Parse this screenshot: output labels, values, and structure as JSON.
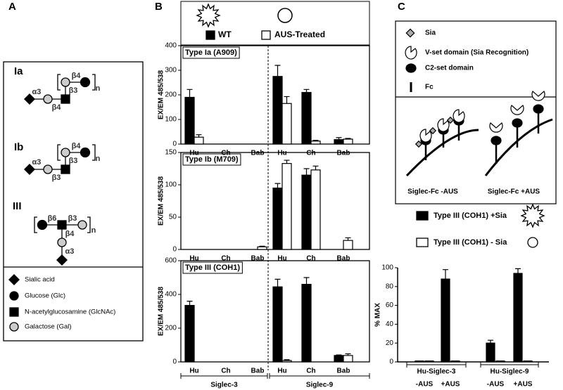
{
  "panel_labels": [
    "A",
    "B",
    "C"
  ],
  "panel_a": {
    "structures": [
      {
        "label": "Ia",
        "texts": [
          "β4",
          "n",
          "α3",
          "β3",
          "β4"
        ]
      },
      {
        "label": "Ib",
        "texts": [
          "β4",
          "n",
          "α3",
          "β3",
          "β3"
        ]
      },
      {
        "label": "III",
        "texts": [
          "β6",
          "β3",
          "n",
          "β4",
          "α3"
        ]
      }
    ],
    "legend": [
      "Sialic acid",
      "Glucose (Glc)",
      "N-acetylglucosamine (GlcNAc)",
      "Galactose (Gal)"
    ]
  },
  "panel_c": {
    "key": [
      "Sia",
      "V-set domain (Sia Recognition)",
      "C2-set domain",
      "Fc"
    ],
    "diagram_labels": [
      "Siglec-Fc -AUS",
      "Siglec-Fc +AUS"
    ]
  },
  "chart_data": [
    {
      "type": "bar",
      "title": "Type Ia (A909)",
      "y_label": "EX/EM 485/538",
      "categories": [
        "Hu",
        "Ch",
        "Bab",
        "Hu",
        "Ch",
        "Bab"
      ],
      "series": [
        {
          "name": "WT",
          "color": "#000000",
          "values": [
            190,
            0,
            0,
            275,
            210,
            18
          ],
          "errors": [
            32,
            null,
            null,
            45,
            12,
            8
          ]
        },
        {
          "name": "AUS-Treated",
          "color": "#ffffff",
          "values": [
            28,
            0,
            0,
            165,
            12,
            20
          ],
          "errors": [
            10,
            null,
            null,
            28,
            3,
            3
          ]
        }
      ],
      "ylim": [
        0,
        400
      ],
      "yticks": [
        0,
        100,
        200,
        300,
        400
      ]
    },
    {
      "type": "bar",
      "title": "Type Ib (M709)",
      "y_label": "EX/EM 485/538",
      "categories": [
        "Hu",
        "Ch",
        "Bab",
        "Hu",
        "Ch",
        "Bab"
      ],
      "series": [
        {
          "color": "#000000",
          "values": [
            0,
            0,
            0,
            95,
            115,
            0
          ],
          "errors": [
            null,
            null,
            null,
            7,
            10,
            null
          ]
        },
        {
          "color": "#ffffff",
          "values": [
            0,
            0,
            4,
            133,
            123,
            14
          ],
          "errors": [
            null,
            null,
            1,
            5,
            6,
            4
          ]
        }
      ],
      "ylim": [
        0,
        150
      ],
      "yticks": [
        0,
        50,
        100,
        150
      ]
    },
    {
      "type": "bar",
      "title": "Type III (COH1)",
      "y_label": "EX/EM 485/538",
      "categories": [
        "Hu",
        "Ch",
        "Bab",
        "Hu",
        "Ch",
        "Bab"
      ],
      "groups": [
        "Siglec-3",
        "Siglec-9"
      ],
      "series": [
        {
          "color": "#000000",
          "values": [
            335,
            0,
            0,
            445,
            460,
            38
          ],
          "errors": [
            25,
            null,
            null,
            45,
            40,
            3
          ]
        },
        {
          "color": "#ffffff",
          "values": [
            0,
            0,
            0,
            8,
            0,
            38
          ],
          "errors": [
            null,
            null,
            null,
            5,
            null,
            10
          ]
        }
      ],
      "ylim": [
        0,
        600
      ],
      "yticks": [
        0,
        200,
        400,
        600
      ]
    },
    {
      "type": "bar",
      "y_label": "% MAX",
      "categories": [
        "-AUS",
        "+AUS",
        "-AUS",
        "+AUS"
      ],
      "groups": [
        "Hu-Siglec-3",
        "Hu-Siglec-9"
      ],
      "series": [
        {
          "name": "Type III (COH1) +Sia",
          "color": "#000000",
          "values": [
            1,
            88,
            20,
            94
          ],
          "errors": [
            null,
            10,
            3,
            5
          ]
        },
        {
          "name": "Type III (COH1) - Sia",
          "color": "#ffffff",
          "values": [
            1,
            1,
            1,
            1
          ],
          "errors": [
            null,
            null,
            null,
            null
          ]
        }
      ],
      "ylim": [
        0,
        100
      ],
      "yticks": [
        0,
        20,
        40,
        60,
        80,
        100
      ]
    }
  ]
}
